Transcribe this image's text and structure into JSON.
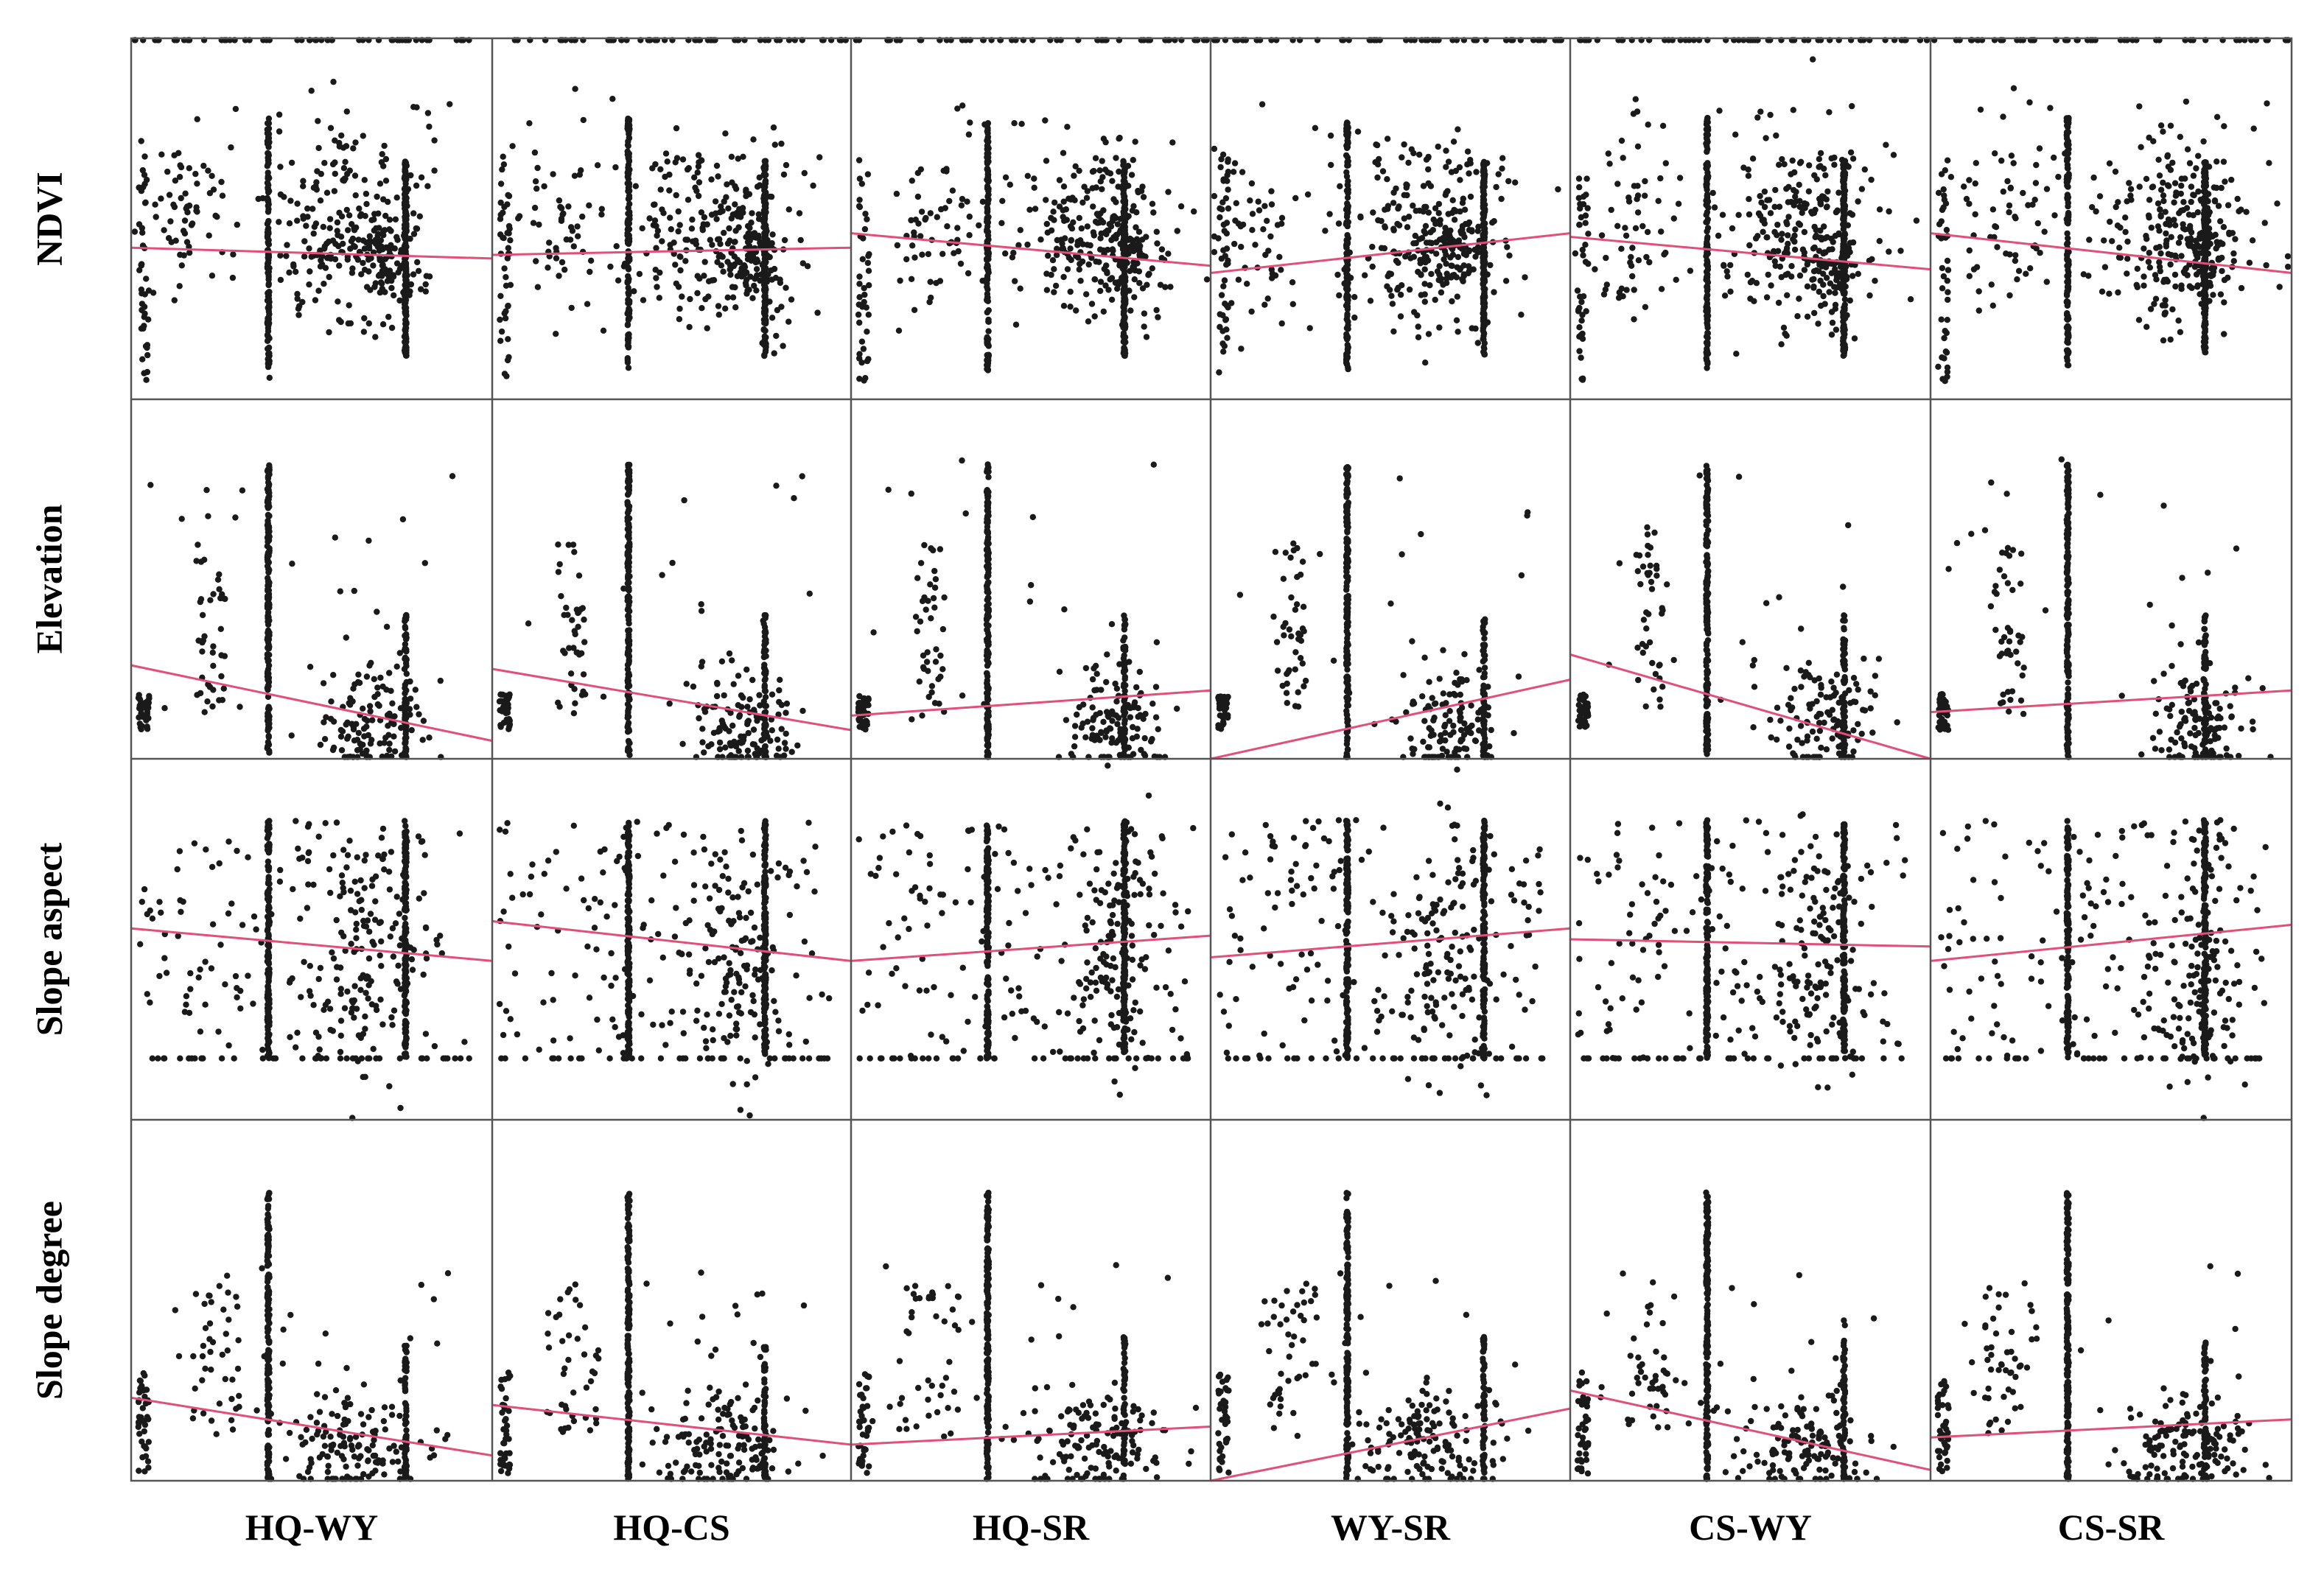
{
  "chart_data": {
    "type": "scatter",
    "title": "",
    "layout": "scatter-matrix",
    "columns": [
      "HQ-WY",
      "HQ-CS",
      "HQ-SR",
      "WY-SR",
      "CS-WY",
      "CS-SR"
    ],
    "rows": [
      "NDVI",
      "Elevation",
      "Slope aspect",
      "Slope degree"
    ],
    "x_range": [
      0,
      1
    ],
    "y_range": [
      0,
      1
    ],
    "grid": false,
    "legend": "none",
    "point_color": "#1a1a1a",
    "trend_color": "#e0507a",
    "trend_lines": {
      "NDVI": [
        [
          0.42,
          0.39
        ],
        [
          0.4,
          0.42
        ],
        [
          0.46,
          0.37
        ],
        [
          0.35,
          0.46
        ],
        [
          0.45,
          0.36
        ],
        [
          0.46,
          0.35
        ]
      ],
      "Elevation": [
        [
          0.26,
          0.05
        ],
        [
          0.25,
          0.08
        ],
        [
          0.12,
          0.19
        ],
        [
          0.0,
          0.22
        ],
        [
          0.29,
          0.0
        ],
        [
          0.13,
          0.19
        ]
      ],
      "Slope aspect": [
        [
          0.53,
          0.44
        ],
        [
          0.55,
          0.44
        ],
        [
          0.44,
          0.51
        ],
        [
          0.45,
          0.53
        ],
        [
          0.5,
          0.48
        ],
        [
          0.44,
          0.54
        ]
      ],
      "Slope degree": [
        [
          0.23,
          0.07
        ],
        [
          0.21,
          0.1
        ],
        [
          0.1,
          0.15
        ],
        [
          0.0,
          0.2
        ],
        [
          0.25,
          0.03
        ],
        [
          0.12,
          0.17
        ]
      ]
    },
    "point_clusters": {
      "NDVI": [
        {
          "dist": "uniform",
          "n": 40,
          "x": [
            0.02,
            0.05
          ],
          "y": [
            0.05,
            0.68
          ]
        },
        {
          "dist": "gauss",
          "n": 60,
          "x": [
            0.18,
            0.07
          ],
          "y": [
            0.48,
            0.12
          ]
        },
        {
          "dist": "vline",
          "n": 140,
          "x": 0.38,
          "y": [
            0.08,
            0.78
          ]
        },
        {
          "dist": "gauss",
          "n": 240,
          "x": [
            0.64,
            0.11
          ],
          "y": [
            0.45,
            0.13
          ]
        },
        {
          "dist": "vline",
          "n": 180,
          "x": 0.76,
          "y": [
            0.12,
            0.66
          ]
        },
        {
          "dist": "gauss",
          "n": 60,
          "x": [
            0.73,
            0.03
          ],
          "y": [
            0.4,
            0.06
          ]
        },
        {
          "dist": "uniform",
          "n": 14,
          "x": [
            0.05,
            0.9
          ],
          "y": [
            0.62,
            0.82
          ]
        },
        {
          "dist": "hline",
          "n": 60,
          "x": [
            0.0,
            1.0
          ],
          "y": 0.995
        }
      ],
      "Elevation": [
        {
          "dist": "uniform",
          "n": 40,
          "x": [
            0.02,
            0.05
          ],
          "y": [
            0.08,
            0.18
          ]
        },
        {
          "dist": "vline",
          "n": 180,
          "x": 0.38,
          "y": [
            0.0,
            0.82
          ]
        },
        {
          "dist": "gauss",
          "n": 120,
          "x": [
            0.7,
            0.07
          ],
          "y": [
            0.1,
            0.08
          ]
        },
        {
          "dist": "uniform",
          "n": 40,
          "x": [
            0.18,
            0.26
          ],
          "y": [
            0.12,
            0.6
          ]
        },
        {
          "dist": "vline",
          "n": 70,
          "x": 0.76,
          "y": [
            0.0,
            0.4
          ]
        },
        {
          "dist": "uniform",
          "n": 20,
          "x": [
            0.05,
            0.9
          ],
          "y": [
            0.1,
            0.85
          ]
        }
      ],
      "Slope aspect": [
        {
          "dist": "uniform",
          "n": 160,
          "x": [
            0.02,
            0.94
          ],
          "y": [
            0.17,
            0.83
          ]
        },
        {
          "dist": "vline",
          "n": 160,
          "x": 0.38,
          "y": [
            0.17,
            0.83
          ]
        },
        {
          "dist": "vline",
          "n": 160,
          "x": 0.76,
          "y": [
            0.17,
            0.83
          ]
        },
        {
          "dist": "gauss",
          "n": 100,
          "x": [
            0.68,
            0.06
          ],
          "y": [
            0.45,
            0.17
          ]
        },
        {
          "dist": "hline",
          "n": 40,
          "x": [
            0.02,
            0.94
          ],
          "y": 0.17
        }
      ],
      "Slope degree": [
        {
          "dist": "uniform",
          "n": 40,
          "x": [
            0.02,
            0.05
          ],
          "y": [
            0.02,
            0.3
          ]
        },
        {
          "dist": "vline",
          "n": 180,
          "x": 0.38,
          "y": [
            0.0,
            0.8
          ]
        },
        {
          "dist": "gauss",
          "n": 140,
          "x": [
            0.65,
            0.1
          ],
          "y": [
            0.1,
            0.07
          ]
        },
        {
          "dist": "uniform",
          "n": 40,
          "x": [
            0.15,
            0.3
          ],
          "y": [
            0.12,
            0.55
          ]
        },
        {
          "dist": "vline",
          "n": 60,
          "x": 0.76,
          "y": [
            0.0,
            0.4
          ]
        },
        {
          "dist": "uniform",
          "n": 20,
          "x": [
            0.05,
            0.9
          ],
          "y": [
            0.1,
            0.6
          ]
        }
      ]
    }
  }
}
